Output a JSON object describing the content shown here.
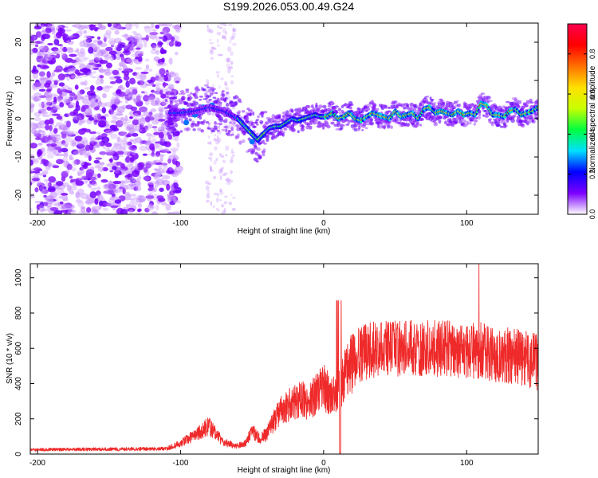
{
  "title": "S199.2026.053.00.49.G24",
  "chart_data": [
    {
      "type": "heatmap",
      "name": "spectrogram",
      "xlabel": "Height of straight line (km)",
      "ylabel": "Frequency (Hz)",
      "xlim": [
        -205,
        150
      ],
      "ylim": [
        -25,
        25
      ],
      "xticks": [
        -200,
        -100,
        0,
        100
      ],
      "xtick_labels": [
        "-200",
        "-100",
        "0",
        "100"
      ],
      "yticks": [
        -20,
        -10,
        0,
        10,
        20
      ],
      "ytick_labels": [
        "-20",
        "-10",
        "0",
        "10",
        "20"
      ],
      "colorbar": {
        "label": "Normalized spectral amplitude",
        "range": [
          0,
          0.95
        ],
        "ticks": [
          0.0,
          0.2,
          0.4,
          0.6,
          0.8
        ],
        "tick_labels": [
          "0.0",
          "0.2",
          "0.4",
          "0.6",
          "0.8"
        ],
        "stops": [
          "#ffffff",
          "#7c00ff",
          "#0000ff",
          "#00e0ff",
          "#00ff40",
          "#c8ff00",
          "#ffe000",
          "#ff7000",
          "#ff0000",
          "#ff0050"
        ]
      },
      "ridge": {
        "x": [
          -110,
          -100,
          -90,
          -80,
          -70,
          -60,
          -55,
          -50,
          -46,
          -42,
          -38,
          -34,
          -30,
          -26,
          -22,
          -18,
          -14,
          -10,
          -6,
          -2,
          2,
          6,
          10,
          14,
          18,
          22,
          26,
          30,
          34,
          38,
          42,
          46,
          50,
          54,
          58,
          62,
          66,
          70,
          74,
          78,
          82,
          86,
          90,
          94,
          98,
          102,
          106,
          110,
          114,
          118,
          122,
          126,
          130,
          134,
          138,
          142,
          146,
          150
        ],
        "y": [
          1.5,
          1.5,
          2.0,
          3.0,
          2.0,
          0.0,
          -2.0,
          -4.0,
          -5.5,
          -4.0,
          -2.5,
          -2.0,
          -2.0,
          -1.0,
          0.0,
          -0.5,
          0.0,
          0.5,
          1.0,
          0.5,
          0.5,
          1.5,
          0.0,
          0.5,
          1.5,
          0.0,
          -0.5,
          0.5,
          1.5,
          1.0,
          0.5,
          0.0,
          2.0,
          0.5,
          1.0,
          1.5,
          0.0,
          2.5,
          3.0,
          1.5,
          2.0,
          1.5,
          1.0,
          2.0,
          1.0,
          1.5,
          1.0,
          4.0,
          3.5,
          1.0,
          1.0,
          0.5,
          2.0,
          2.5,
          1.0,
          1.5,
          2.0,
          3.0
        ]
      }
    },
    {
      "type": "line",
      "name": "snr",
      "xlabel": "Height of straight line (km)",
      "ylabel": "SNR (10 * v/v)",
      "xlim": [
        -205,
        150
      ],
      "ylim": [
        0,
        1080
      ],
      "xticks": [
        -200,
        -100,
        0,
        100
      ],
      "xtick_labels": [
        "-200",
        "-100",
        "0",
        "100"
      ],
      "yticks": [
        0,
        200,
        400,
        600,
        800,
        1000
      ],
      "ytick_labels": [
        "0",
        "200",
        "400",
        "600",
        "800",
        "1000"
      ],
      "color": "#ef2a2a",
      "envelope": {
        "x": [
          -205,
          -110,
          -100,
          -90,
          -85,
          -80,
          -75,
          -70,
          -65,
          -60,
          -55,
          -50,
          -45,
          -40,
          -35,
          -30,
          -25,
          -20,
          -15,
          -10,
          -5,
          0,
          5,
          10,
          15,
          20,
          25,
          30,
          40,
          50,
          60,
          70,
          80,
          90,
          100,
          110,
          120,
          130,
          140,
          150
        ],
        "y": [
          25,
          30,
          60,
          110,
          130,
          160,
          110,
          70,
          55,
          45,
          60,
          130,
          90,
          110,
          190,
          240,
          280,
          300,
          310,
          300,
          340,
          380,
          330,
          380,
          450,
          520,
          560,
          580,
          600,
          600,
          600,
          600,
          600,
          600,
          580,
          590,
          560,
          560,
          540,
          520
        ]
      }
    }
  ]
}
